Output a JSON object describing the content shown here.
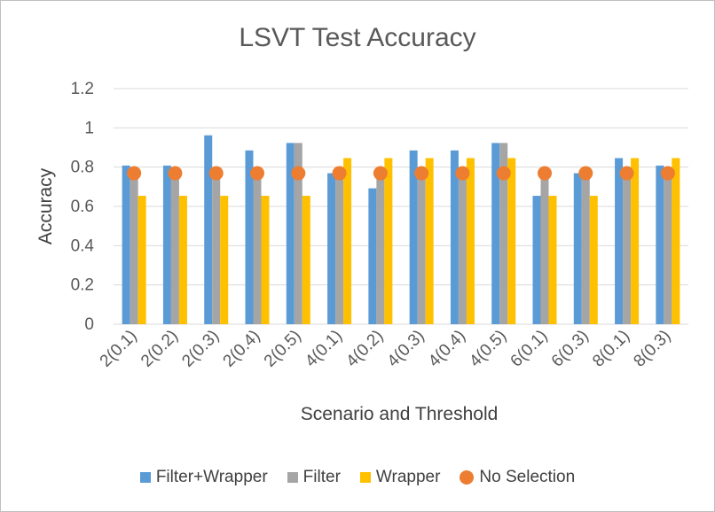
{
  "chart_data": {
    "type": "bar",
    "title": "LSVT Test Accuracy",
    "xlabel": "Scenario and Threshold",
    "ylabel": "Accuracy",
    "ylim": [
      0,
      1.2
    ],
    "yticks": [
      "0",
      "0.2",
      "0.4",
      "0.6",
      "0.8",
      "1",
      "1.2"
    ],
    "grid": true,
    "legend_position": "bottom",
    "categories": [
      "2(0.1)",
      "2(0.2)",
      "2(0.3)",
      "2(0.4)",
      "2(0.5)",
      "4(0.1)",
      "4(0.2)",
      "4(0.3)",
      "4(0.4)",
      "4(0.5)",
      "6(0.1)",
      "6(0.3)",
      "8(0.1)",
      "8(0.3)"
    ],
    "series": [
      {
        "name": "Filter+Wrapper",
        "kind": "bar",
        "color": "#5b9bd5",
        "values": [
          0.808,
          0.808,
          0.962,
          0.885,
          0.923,
          0.769,
          0.692,
          0.885,
          0.885,
          0.923,
          0.654,
          0.769,
          0.846,
          0.808
        ]
      },
      {
        "name": "Filter",
        "kind": "bar",
        "color": "#a5a5a5",
        "values": [
          0.769,
          0.769,
          0.769,
          0.769,
          0.923,
          0.769,
          0.769,
          0.769,
          0.769,
          0.923,
          0.769,
          0.769,
          0.769,
          0.769
        ]
      },
      {
        "name": "Wrapper",
        "kind": "bar",
        "color": "#ffc000",
        "values": [
          0.654,
          0.654,
          0.654,
          0.654,
          0.654,
          0.846,
          0.846,
          0.846,
          0.846,
          0.846,
          0.654,
          0.654,
          0.846,
          0.846
        ]
      },
      {
        "name": "No Selection",
        "kind": "marker",
        "color": "#ed7d31",
        "values": [
          0.769,
          0.769,
          0.769,
          0.769,
          0.769,
          0.769,
          0.769,
          0.769,
          0.769,
          0.769,
          0.769,
          0.769,
          0.769,
          0.769
        ]
      }
    ]
  }
}
